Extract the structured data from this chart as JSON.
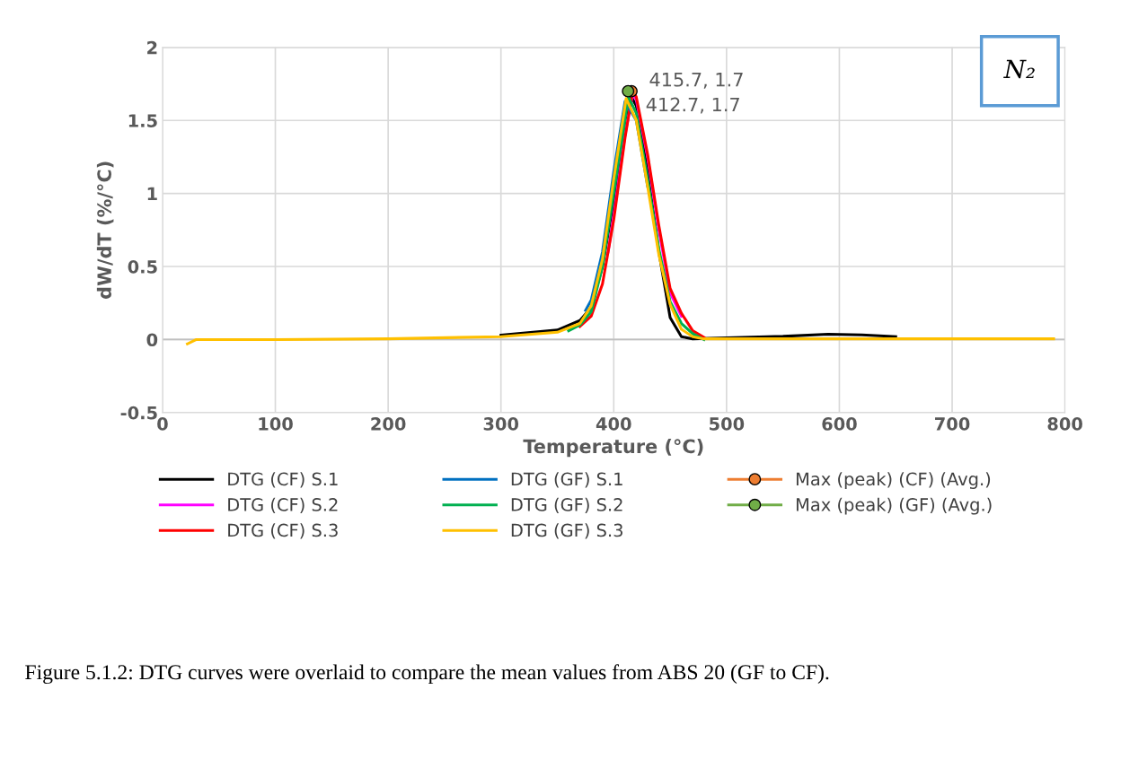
{
  "chart_data": {
    "type": "line",
    "xlabel": "Temperature (°C)",
    "ylabel": "dW/dT (%/°C)",
    "xlim": [
      0,
      800
    ],
    "xticks": [
      0,
      100,
      200,
      300,
      400,
      500,
      600,
      700,
      800
    ],
    "ylim": [
      -0.5,
      2
    ],
    "yticks": [
      -0.5,
      0,
      0.5,
      1,
      1.5,
      2
    ],
    "grid": true,
    "legend": "bottom",
    "line_style": "solid",
    "series": [
      {
        "name": "DTG (CF) S.1",
        "color": "#000000",
        "x": [
          300,
          350,
          370,
          380,
          390,
          400,
          410,
          415,
          420,
          430,
          440,
          450,
          460,
          470,
          500,
          550,
          590,
          620,
          650
        ],
        "values": [
          0.03,
          0.065,
          0.13,
          0.22,
          0.5,
          0.95,
          1.5,
          1.67,
          1.6,
          1.15,
          0.6,
          0.15,
          0.02,
          0.005,
          0.012,
          0.022,
          0.037,
          0.032,
          0.02
        ]
      },
      {
        "name": "DTG (CF) S.2",
        "color": "#ff00ff",
        "x": [
          395,
          400,
          410,
          417,
          420,
          430,
          440,
          450,
          460
        ],
        "values": [
          0.6,
          0.85,
          1.4,
          1.69,
          1.64,
          1.25,
          0.75,
          0.32,
          0.16
        ]
      },
      {
        "name": "DTG (CF) S.3",
        "color": "#ff0000",
        "x": [
          370,
          380,
          390,
          400,
          410,
          417,
          420,
          430,
          440,
          450,
          460,
          470,
          480
        ],
        "values": [
          0.09,
          0.16,
          0.38,
          0.82,
          1.38,
          1.71,
          1.66,
          1.27,
          0.78,
          0.35,
          0.18,
          0.06,
          0.015
        ]
      },
      {
        "name": "DTG (GF) S.1",
        "color": "#0070c0",
        "x": [
          375,
          380,
          390,
          400,
          410,
          420,
          430
        ],
        "values": [
          0.2,
          0.27,
          0.6,
          1.15,
          1.63,
          1.5,
          1.05
        ]
      },
      {
        "name": "DTG (GF) S.2",
        "color": "#00b050",
        "x": [
          360,
          370,
          380,
          390,
          400,
          413,
          420,
          430,
          440,
          450,
          460,
          470,
          480
        ],
        "values": [
          0.06,
          0.1,
          0.19,
          0.5,
          1.0,
          1.66,
          1.55,
          1.1,
          0.62,
          0.26,
          0.11,
          0.04,
          0.0
        ]
      },
      {
        "name": "DTG (GF) S.3",
        "color": "#ffc000",
        "x": [
          22,
          30,
          100,
          200,
          300,
          350,
          370,
          380,
          390,
          400,
          411,
          420,
          430,
          440,
          450,
          460,
          470,
          480,
          500,
          600,
          700,
          790
        ],
        "values": [
          -0.03,
          0.0,
          0.0,
          0.005,
          0.02,
          0.05,
          0.11,
          0.23,
          0.55,
          1.1,
          1.65,
          1.5,
          1.05,
          0.58,
          0.24,
          0.07,
          0.02,
          0.005,
          0.005,
          0.005,
          0.005,
          0.005
        ]
      },
      {
        "name": "Max (peak) (CF) (Avg.)",
        "type": "scatter",
        "marker": "circle",
        "color": "#ed7d31",
        "x": [
          415.7
        ],
        "values": [
          1.7
        ],
        "value_labels": [
          "415.7, 1.7"
        ]
      },
      {
        "name": "Max (peak) (GF) (Avg.)",
        "type": "scatter",
        "marker": "circle",
        "color": "#70ad47",
        "x": [
          412.7
        ],
        "values": [
          1.7
        ],
        "value_labels": [
          "412.7, 1.7"
        ]
      }
    ],
    "annotations": [
      "N₂",
      "Figure 5.1.2: DTG curves were overlaid to compare the mean values from ABS 20 (GF to CF)."
    ]
  }
}
